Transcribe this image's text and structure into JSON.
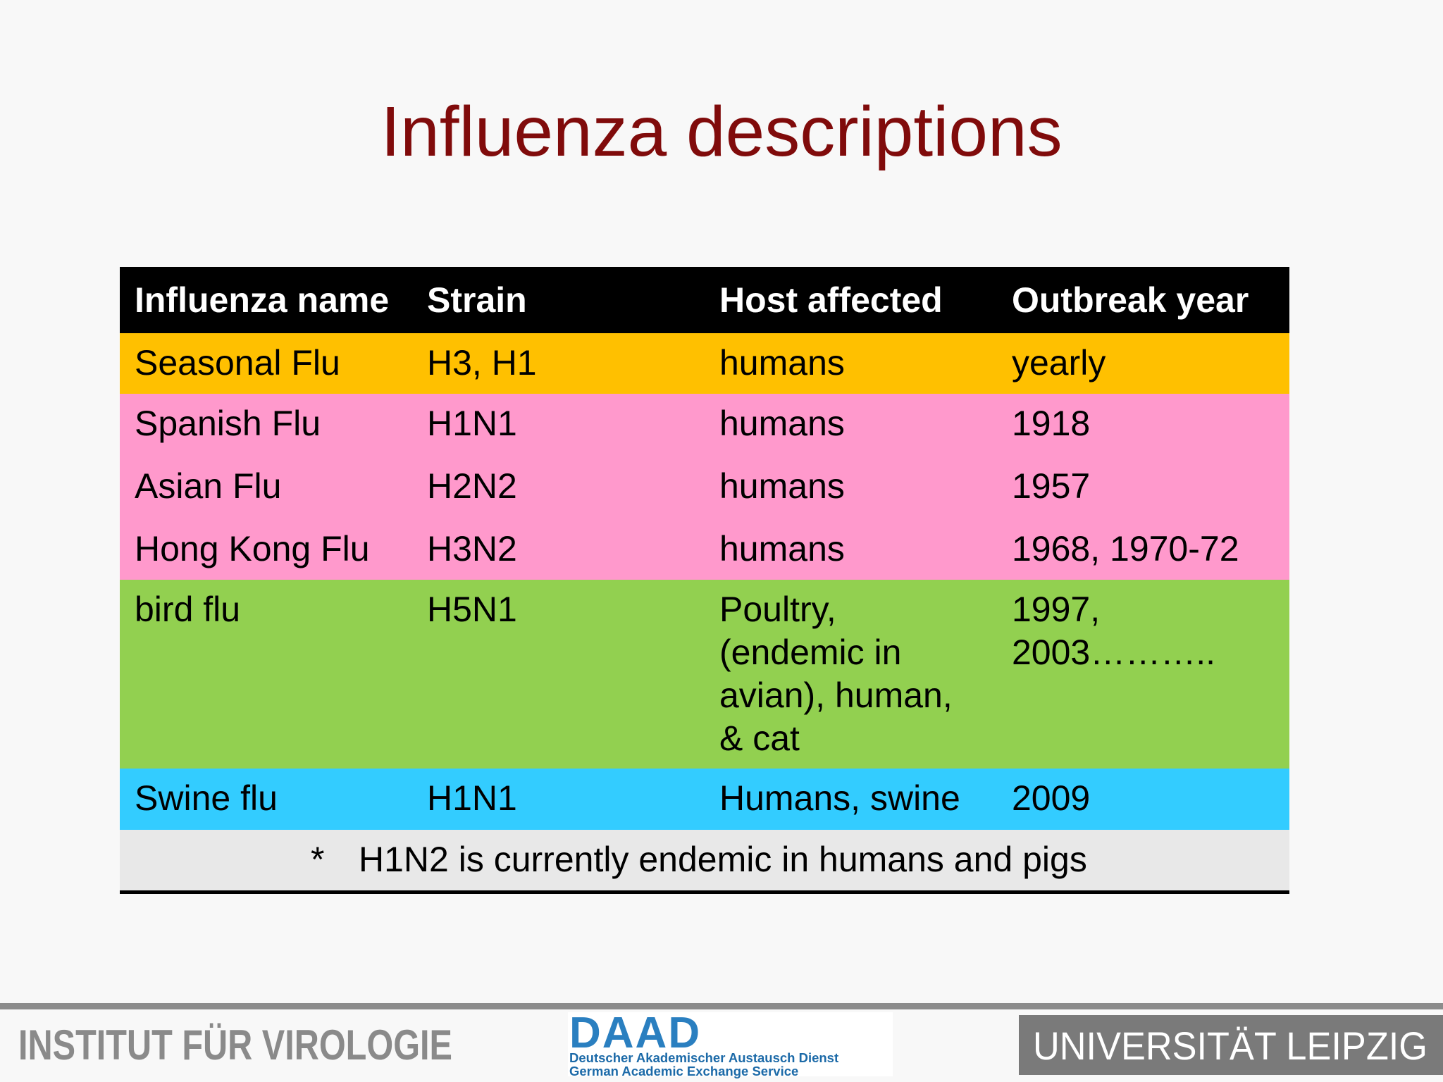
{
  "title": "Influenza descriptions",
  "table": {
    "header": [
      "Influenza name",
      "Strain",
      "Host affected",
      "Outbreak year"
    ],
    "rows": [
      [
        "Seasonal Flu",
        "H3, H1",
        "humans",
        "yearly"
      ],
      [
        "Spanish Flu",
        "H1N1",
        "humans",
        "1918"
      ],
      [
        "Asian Flu",
        "H2N2",
        "humans",
        "1957"
      ],
      [
        "Hong Kong Flu",
        "H3N2",
        "humans",
        "1968, 1970-72"
      ],
      [
        "bird flu",
        "H5N1",
        "Poultry,\n(endemic in\navian), human,\n& cat",
        "1997,\n2003……….."
      ],
      [
        "Swine flu",
        "H1N1",
        "Humans, swine",
        "2009"
      ]
    ],
    "footnote": {
      "marker": "*",
      "text": "H1N2 is currently endemic in humans and pigs"
    }
  },
  "footer": {
    "institute": "INSTITUT FÜR VIROLOGIE",
    "daad": {
      "name": "DAAD",
      "line1": "Deutscher Akademischer Austausch Dienst",
      "line2": "German Academic Exchange Service"
    },
    "university": "UNIVERSITÄT LEIPZIG"
  }
}
